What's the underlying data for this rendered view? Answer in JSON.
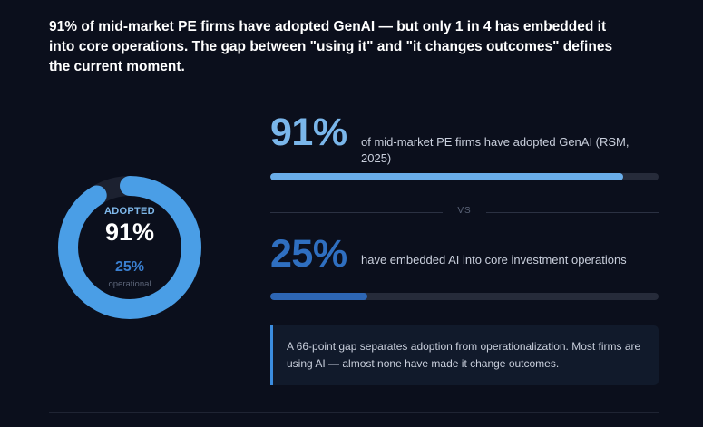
{
  "headline": "91% of mid-market PE firms have adopted GenAI — but only 1 in 4 has embedded it into core operations. The gap between \"using it\" and \"it changes outcomes\" defines the current moment.",
  "donut": {
    "adopted_label": "ADOPTED",
    "adopted_value": "91%",
    "operational_value": "25%",
    "operational_label": "operational",
    "adopted_fraction": 0.91,
    "ring_color": "#4a9ee6",
    "track_color": "#1c2130"
  },
  "stats": {
    "adopted": {
      "value": "91%",
      "description": "of mid-market PE firms have adopted GenAI (RSM, 2025)",
      "fraction": 0.91,
      "color": "#7ab6ea",
      "bar_color": "#6aaeea"
    },
    "vs_label": "VS",
    "embedded": {
      "value": "25%",
      "description": "have embedded AI into core investment operations",
      "fraction": 0.25,
      "color": "#2f6fc0",
      "bar_color": "#2d66b5"
    }
  },
  "callout": {
    "text": "A 66-point gap separates adoption from operationalization. Most firms are using AI — almost none have made it change outcomes.",
    "accent_color": "#3b8de0"
  }
}
